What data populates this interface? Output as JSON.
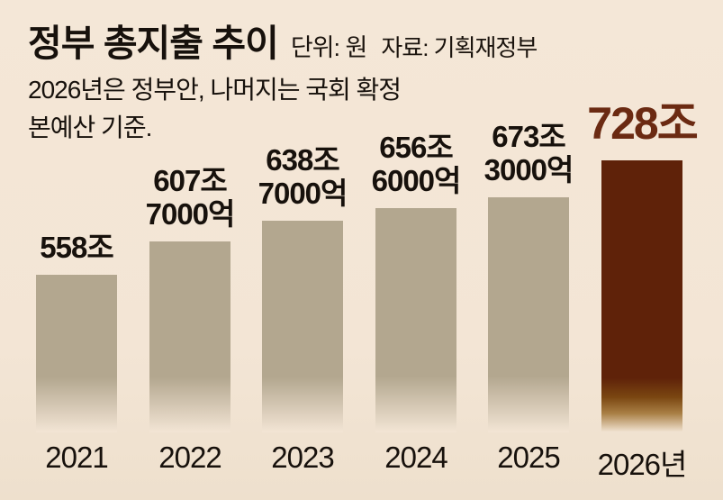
{
  "title": "정부 총지출 추이",
  "unit_label": "단위: 원",
  "source_label": "자료: 기획재정부",
  "note_line1": "2026년은 정부안, 나머지는 국회 확정",
  "note_line2": "본예산 기준.",
  "colors": {
    "background": "#f3e5d5",
    "bar_default": "#b3a78f",
    "bar_highlight": "#5f2209",
    "highlight_text": "#6b2a12",
    "text": "#17110c"
  },
  "chart_data": {
    "type": "bar",
    "title": "정부 총지출 추이",
    "unit": "원",
    "source": "기획재정부",
    "categories": [
      "2021",
      "2022",
      "2023",
      "2024",
      "2025",
      "2026년"
    ],
    "values": [
      558,
      607.7,
      638.7,
      656.6,
      673.3,
      728
    ],
    "value_unit": "조 원",
    "value_labels": [
      [
        "558조"
      ],
      [
        "607조",
        "7000억"
      ],
      [
        "638조",
        "7000억"
      ],
      [
        "656조",
        "6000억"
      ],
      [
        "673조",
        "3000억"
      ],
      [
        "728조"
      ]
    ],
    "highlight_index": 5,
    "ylim": [
      0,
      728
    ],
    "grid": false,
    "legend": false,
    "annotations": [
      "2026년은 정부안, 나머지는 국회 확정 본예산 기준."
    ]
  }
}
